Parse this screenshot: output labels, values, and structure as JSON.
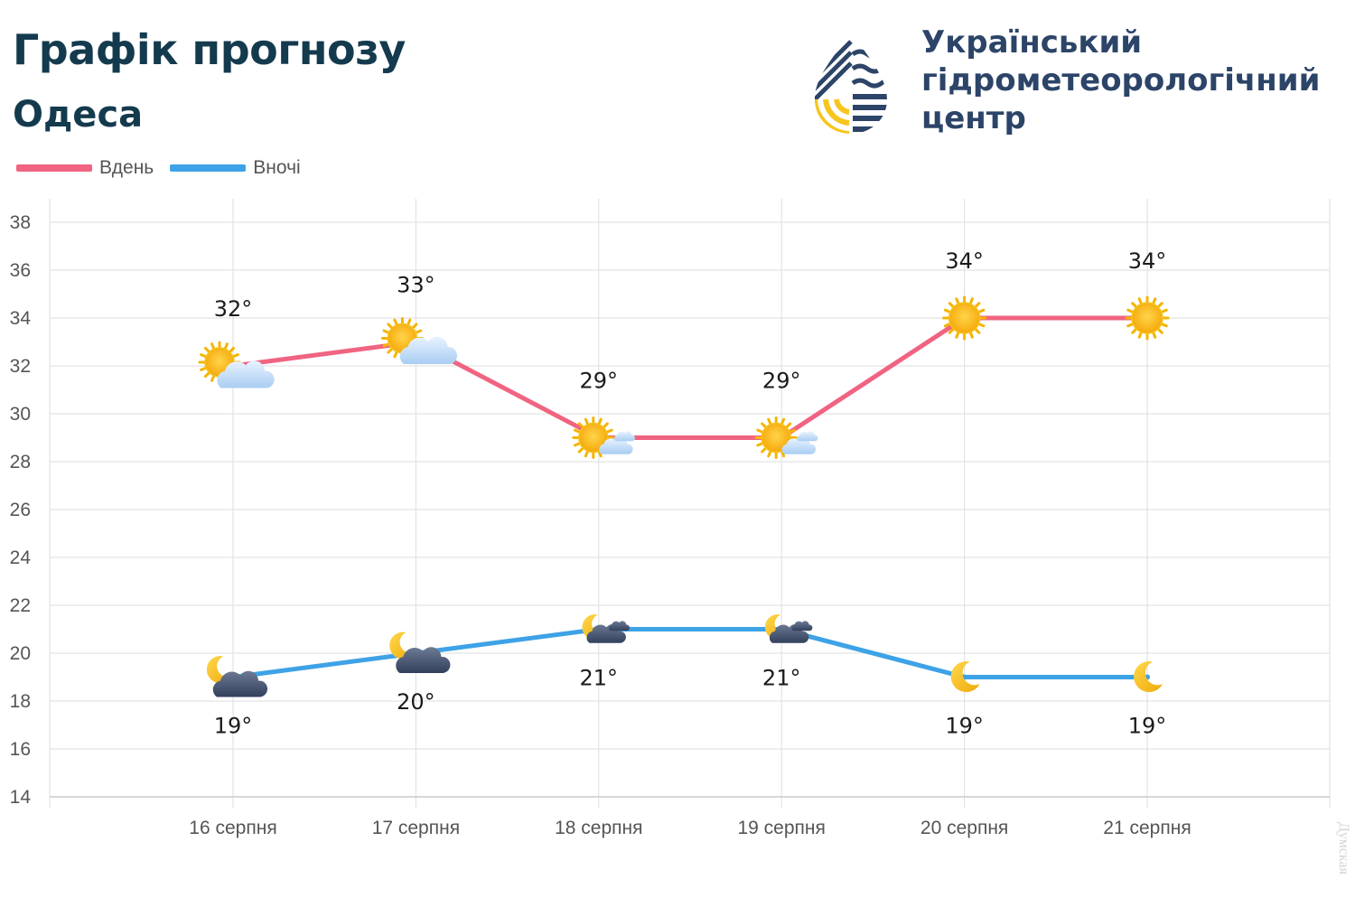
{
  "header": {
    "title": "Графік прогнозу",
    "subtitle": "Одеса"
  },
  "organization": {
    "line1": "Український",
    "line2": "гідрометеорологічний",
    "line3": "центр",
    "logo_icon": "drop-logo-icon"
  },
  "legend": {
    "day_label": "Вдень",
    "night_label": "Вночі"
  },
  "watermark": "Думская",
  "colors": {
    "day": "#f06482",
    "night": "#3ea2e6",
    "title": "#143a4e",
    "org": "#2c4468"
  },
  "chart_data": {
    "type": "line",
    "categories": [
      "16 серпня",
      "17 серпня",
      "18 серпня",
      "19 серпня",
      "20 серпня",
      "21 серпня"
    ],
    "ylim": [
      14,
      38
    ],
    "yticks": [
      14,
      16,
      18,
      20,
      22,
      24,
      26,
      28,
      30,
      32,
      34,
      36,
      38
    ],
    "grid": true,
    "legend_position": "top-left",
    "series": [
      {
        "name": "Вдень",
        "values": [
          32,
          33,
          29,
          29,
          34,
          34
        ],
        "labels": [
          "32°",
          "33°",
          "29°",
          "29°",
          "34°",
          "34°"
        ],
        "icons": [
          "sun-cloud-icon",
          "sun-cloud-icon",
          "sun-small-cloud-icon",
          "sun-small-cloud-icon",
          "sun-icon",
          "sun-icon"
        ]
      },
      {
        "name": "Вночі",
        "values": [
          19,
          20,
          21,
          21,
          19,
          19
        ],
        "labels": [
          "19°",
          "20°",
          "21°",
          "21°",
          "19°",
          "19°"
        ],
        "icons": [
          "moon-cloud-icon",
          "moon-cloud-icon",
          "moon-small-cloud-icon",
          "moon-small-cloud-icon",
          "moon-icon",
          "moon-icon"
        ]
      }
    ]
  }
}
